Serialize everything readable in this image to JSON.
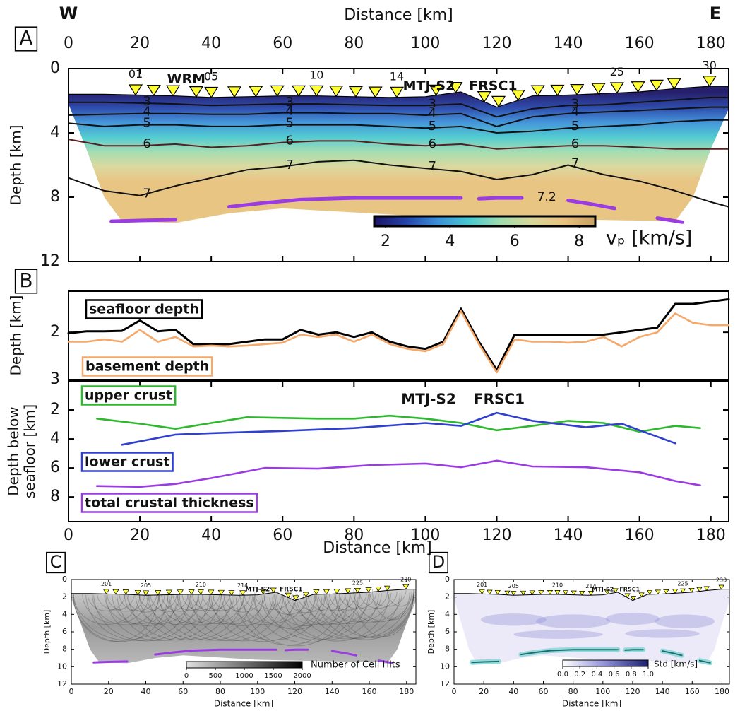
{
  "chart_data": [
    {
      "type": "velocity-section",
      "panel_label": "A",
      "west_label": "W",
      "east_label": "E",
      "x_label": "Distance [km]",
      "y_label": "Depth [km]",
      "xlim": [
        0,
        185
      ],
      "xticks": [
        0,
        20,
        40,
        60,
        80,
        100,
        120,
        140,
        160,
        180
      ],
      "ylim": [
        0,
        12
      ],
      "yticks": [
        0,
        4,
        8,
        12
      ],
      "y_inverted": true,
      "annotations": [
        "WRM",
        "MTJ-S2",
        "FRSC1"
      ],
      "stations": {
        "color": "#ffff33",
        "x": [
          18.8,
          23.9,
          29.3,
          35.8,
          40.0,
          46.5,
          52.5,
          58.5,
          64.5,
          69.5,
          75.0,
          80.5,
          86.0,
          92.0,
          103.0,
          108.5,
          116.5,
          120.5,
          126.0,
          131.5,
          137.0,
          142.5,
          148.5,
          153.7,
          159.6,
          164.8,
          169.7,
          179.6
        ],
        "labels": [
          "01",
          null,
          null,
          null,
          "05",
          null,
          null,
          null,
          null,
          "10",
          null,
          null,
          null,
          "14",
          null,
          null,
          null,
          null,
          null,
          null,
          null,
          null,
          null,
          "25",
          null,
          null,
          null,
          "30"
        ]
      },
      "x": [
        0,
        10,
        20,
        30,
        40,
        50,
        60,
        70,
        80,
        90,
        100,
        110,
        120,
        130,
        140,
        150,
        160,
        170,
        180,
        185
      ],
      "seafloor": [
        1.6,
        1.6,
        1.65,
        1.7,
        1.8,
        1.75,
        1.7,
        1.7,
        1.75,
        1.8,
        1.75,
        1.45,
        2.4,
        1.7,
        1.65,
        1.55,
        1.45,
        1.25,
        1.1,
        1.1
      ],
      "contours": [
        {
          "name": "3",
          "color": "#111111",
          "values": [
            2.1,
            2.1,
            2.15,
            2.2,
            2.3,
            2.25,
            2.2,
            2.2,
            2.25,
            2.3,
            2.3,
            2.2,
            3.0,
            2.5,
            2.3,
            2.25,
            2.1,
            1.95,
            1.8,
            1.8
          ]
        },
        {
          "name": "4",
          "color": "#111111",
          "values": [
            2.9,
            2.85,
            2.8,
            2.8,
            2.85,
            2.85,
            2.75,
            2.75,
            2.8,
            2.8,
            2.9,
            2.8,
            3.6,
            3.0,
            2.8,
            2.7,
            2.6,
            2.5,
            2.4,
            2.4
          ]
        },
        {
          "name": "5",
          "color": "#111111",
          "values": [
            3.4,
            3.6,
            3.5,
            3.5,
            3.6,
            3.6,
            3.5,
            3.5,
            3.5,
            3.6,
            3.7,
            3.6,
            4.0,
            3.9,
            3.7,
            3.6,
            3.5,
            3.3,
            3.2,
            3.2
          ]
        },
        {
          "name": "6",
          "color": "#5a1e1e",
          "values": [
            4.4,
            4.8,
            4.8,
            4.7,
            4.9,
            4.8,
            4.6,
            4.5,
            4.5,
            4.7,
            4.8,
            4.7,
            5.0,
            4.9,
            4.8,
            4.8,
            4.9,
            5.0,
            5.0,
            5.0
          ]
        },
        {
          "name": "7",
          "color": "#111111",
          "values": [
            6.8,
            7.6,
            7.9,
            7.3,
            6.8,
            6.3,
            6.1,
            5.8,
            5.7,
            6.0,
            6.2,
            6.4,
            6.9,
            6.6,
            6.0,
            6.6,
            7.0,
            7.6,
            8.3,
            8.6
          ]
        }
      ],
      "extra_contour_label": "7.2",
      "moho": {
        "color": "#9b3be3",
        "x": [
          12,
          20,
          30,
          38,
          45,
          55,
          65,
          80,
          95,
          110,
          113,
          115,
          120,
          127,
          133,
          140,
          147,
          153,
          160,
          165,
          172
        ],
        "values": [
          9.5,
          9.45,
          9.4,
          null,
          8.6,
          8.35,
          8.15,
          8.05,
          8.05,
          8.05,
          null,
          8.1,
          8.05,
          8.05,
          null,
          8.2,
          8.45,
          8.7,
          null,
          9.3,
          9.55
        ]
      },
      "colorbar": {
        "label": "vₚ [km/s]",
        "lim": [
          1.65,
          8.5
        ],
        "ticks": [
          2,
          4,
          6,
          8
        ],
        "colors": [
          "#1b1464",
          "#2342a8",
          "#3b8fd8",
          "#49c8cf",
          "#9fdcae",
          "#d9d79a",
          "#e8c27e",
          "#c8a064"
        ]
      }
    },
    {
      "type": "line",
      "panel_label": "B",
      "y_label": "Depth [km]",
      "xlim": [
        0,
        185
      ],
      "ylim": [
        1.13,
        3
      ],
      "yticks": [
        2,
        3
      ],
      "y_inverted": true,
      "x": [
        0,
        5,
        10,
        15,
        20,
        25,
        30,
        35,
        40,
        45,
        50,
        55,
        60,
        65,
        70,
        75,
        80,
        85,
        90,
        95,
        100,
        105,
        110,
        115,
        120,
        125,
        130,
        135,
        140,
        145,
        150,
        155,
        160,
        165,
        170,
        175,
        180,
        185
      ],
      "series": [
        {
          "name": "seafloor depth",
          "color": "#000000",
          "values": [
            2.02,
            1.98,
            1.98,
            1.97,
            1.75,
            1.98,
            1.95,
            2.25,
            2.25,
            2.25,
            2.2,
            2.15,
            2.15,
            1.95,
            2.05,
            2.0,
            2.1,
            2.0,
            2.2,
            2.3,
            2.35,
            2.2,
            1.5,
            2.2,
            2.8,
            2.05,
            2.05,
            2.05,
            2.05,
            2.05,
            2.05,
            2.0,
            1.95,
            1.9,
            1.4,
            1.4,
            1.35,
            1.3
          ]
        },
        {
          "name": "basement depth",
          "color": "#f5a868",
          "values": [
            2.2,
            2.2,
            2.15,
            2.2,
            1.95,
            2.2,
            2.1,
            2.3,
            2.28,
            2.3,
            2.28,
            2.25,
            2.22,
            2.05,
            2.1,
            2.05,
            2.2,
            2.05,
            2.25,
            2.35,
            2.4,
            2.25,
            1.55,
            2.25,
            2.85,
            2.15,
            2.2,
            2.2,
            2.22,
            2.2,
            2.1,
            2.3,
            2.1,
            2.0,
            1.6,
            1.8,
            1.85,
            1.85
          ]
        }
      ]
    },
    {
      "type": "line",
      "y_label": [
        "Depth below",
        "seafloor [km]"
      ],
      "x_label": "Distance [km]",
      "xlim": [
        0,
        185
      ],
      "xticks": [
        0,
        20,
        40,
        60,
        80,
        100,
        120,
        140,
        160,
        180
      ],
      "ylim": [
        0,
        9.7
      ],
      "yticks": [
        2,
        4,
        6,
        8
      ],
      "y_inverted": true,
      "annotations": [
        "MTJ-S2",
        "FRSC1"
      ],
      "series": [
        {
          "name": "upper crust",
          "color": "#2db82d",
          "x": [
            8,
            20,
            30,
            40,
            50,
            60,
            70,
            80,
            90,
            100,
            110,
            120,
            130,
            140,
            150,
            160,
            170,
            177
          ],
          "values": [
            2.6,
            2.95,
            3.3,
            2.9,
            2.5,
            2.55,
            2.6,
            2.6,
            2.4,
            2.6,
            2.9,
            3.4,
            3.1,
            2.75,
            2.9,
            3.5,
            3.1,
            3.25
          ]
        },
        {
          "name": "lower crust",
          "color": "#2f3fd0",
          "x": [
            15,
            30,
            40,
            60,
            80,
            100,
            110,
            120,
            130,
            145,
            155,
            170
          ],
          "values": [
            4.4,
            3.7,
            3.6,
            3.45,
            3.25,
            2.9,
            3.1,
            2.2,
            2.75,
            3.2,
            2.95,
            4.3
          ]
        },
        {
          "name": "total crustal thickness",
          "color": "#9b3be3",
          "x": [
            8,
            20,
            30,
            40,
            55,
            70,
            85,
            100,
            110,
            120,
            130,
            145,
            160,
            170,
            177
          ],
          "values": [
            7.25,
            7.3,
            7.1,
            6.7,
            6.0,
            6.05,
            5.8,
            5.7,
            5.95,
            5.5,
            5.9,
            5.95,
            6.3,
            6.9,
            7.2
          ]
        }
      ]
    },
    {
      "type": "ray-coverage",
      "panel_label": "C",
      "x_label": "Distance [km]",
      "y_label": "Depth [km]",
      "xlim": [
        0,
        185
      ],
      "xticks": [
        0,
        20,
        40,
        60,
        80,
        100,
        120,
        140,
        160,
        180
      ],
      "ylim": [
        0,
        12
      ],
      "yticks": [
        0,
        2,
        4,
        6,
        8,
        10,
        12
      ],
      "y_inverted": true,
      "annotations": [
        "MTJ-S2",
        "FRSC1"
      ],
      "stations": {
        "color": "#ffff33",
        "x": [
          18.8,
          23.9,
          29.3,
          35.8,
          40.0,
          46.5,
          52.5,
          58.5,
          64.5,
          69.5,
          75.0,
          80.5,
          86.0,
          92.0,
          103.0,
          108.5,
          116.5,
          120.5,
          126.0,
          131.5,
          137.0,
          142.5,
          148.5,
          153.7,
          159.6,
          164.8,
          169.7,
          179.6
        ],
        "labels": [
          "201",
          null,
          null,
          null,
          "205",
          null,
          null,
          null,
          null,
          "210",
          null,
          null,
          null,
          "214",
          null,
          null,
          null,
          null,
          null,
          null,
          null,
          null,
          null,
          "225",
          null,
          null,
          null,
          "230"
        ]
      },
      "x": [
        0,
        10,
        20,
        30,
        40,
        50,
        60,
        70,
        80,
        90,
        100,
        110,
        120,
        130,
        140,
        150,
        160,
        170,
        180,
        185
      ],
      "seafloor": [
        1.6,
        1.6,
        1.65,
        1.7,
        1.8,
        1.75,
        1.7,
        1.7,
        1.75,
        1.8,
        1.75,
        1.45,
        2.4,
        1.7,
        1.65,
        1.55,
        1.45,
        1.25,
        1.1,
        1.1
      ],
      "moho": {
        "color": "#9b3be3",
        "x": [
          12,
          20,
          30,
          38,
          45,
          55,
          65,
          80,
          95,
          110,
          113,
          115,
          120,
          127,
          133,
          140,
          147,
          153,
          160,
          165,
          172
        ],
        "values": [
          9.5,
          9.45,
          9.4,
          null,
          8.6,
          8.35,
          8.15,
          8.05,
          8.05,
          8.05,
          null,
          8.1,
          8.05,
          8.05,
          null,
          8.2,
          8.45,
          8.7,
          null,
          9.3,
          9.55
        ]
      },
      "colorbar": {
        "label": "Number of Cell Hits",
        "lim": [
          0,
          2000
        ],
        "ticks": [
          0,
          500,
          1000,
          1500,
          2000
        ],
        "colors": [
          "#e0e0e0",
          "#000000"
        ]
      }
    },
    {
      "type": "uncertainty",
      "panel_label": "D",
      "x_label": "Distance [km]",
      "y_label": "Depth [km]",
      "xlim": [
        0,
        185
      ],
      "xticks": [
        0,
        20,
        40,
        60,
        80,
        100,
        120,
        140,
        160,
        180
      ],
      "ylim": [
        0,
        12
      ],
      "yticks": [
        0,
        2,
        4,
        6,
        8,
        10,
        12
      ],
      "y_inverted": true,
      "annotations": [
        "MTJ-S2",
        "FRSC1"
      ],
      "stations": {
        "color": "#ffff33",
        "x": [
          18.8,
          23.9,
          29.3,
          35.8,
          40.0,
          46.5,
          52.5,
          58.5,
          64.5,
          69.5,
          75.0,
          80.5,
          86.0,
          92.0,
          103.0,
          108.5,
          116.5,
          120.5,
          126.0,
          131.5,
          137.0,
          142.5,
          148.5,
          153.7,
          159.6,
          164.8,
          169.7,
          179.6
        ],
        "labels": [
          "201",
          null,
          null,
          null,
          "205",
          null,
          null,
          null,
          null,
          "210",
          null,
          null,
          null,
          "214",
          null,
          null,
          null,
          null,
          null,
          null,
          null,
          null,
          null,
          "225",
          null,
          null,
          null,
          "230"
        ]
      },
      "x": [
        0,
        10,
        20,
        30,
        40,
        50,
        60,
        70,
        80,
        90,
        100,
        110,
        120,
        130,
        140,
        150,
        160,
        170,
        180,
        185
      ],
      "seafloor": [
        1.6,
        1.6,
        1.65,
        1.7,
        1.8,
        1.75,
        1.7,
        1.7,
        1.75,
        1.8,
        1.75,
        1.45,
        2.4,
        1.7,
        1.65,
        1.55,
        1.45,
        1.25,
        1.1,
        1.1
      ],
      "moho": {
        "color": "#1d6b6b",
        "x": [
          12,
          20,
          30,
          38,
          45,
          55,
          65,
          80,
          95,
          110,
          113,
          115,
          120,
          127,
          133,
          140,
          147,
          153,
          160,
          165,
          172
        ],
        "values": [
          9.5,
          9.45,
          9.4,
          null,
          8.6,
          8.35,
          8.15,
          8.05,
          8.05,
          8.05,
          null,
          8.1,
          8.05,
          8.05,
          null,
          8.2,
          8.45,
          8.7,
          null,
          9.3,
          9.55
        ]
      },
      "colorbar": {
        "label": "Std [km/s]",
        "lim": [
          0,
          1
        ],
        "ticks": [
          {
            "value": 0,
            "label": "0.0"
          },
          0.2,
          0.4,
          0.6,
          0.8,
          {
            "value": 1,
            "label": "1.0"
          }
        ],
        "colors": [
          "#ffffff",
          "#8f8fd8",
          "#1a1f6e"
        ]
      }
    }
  ]
}
